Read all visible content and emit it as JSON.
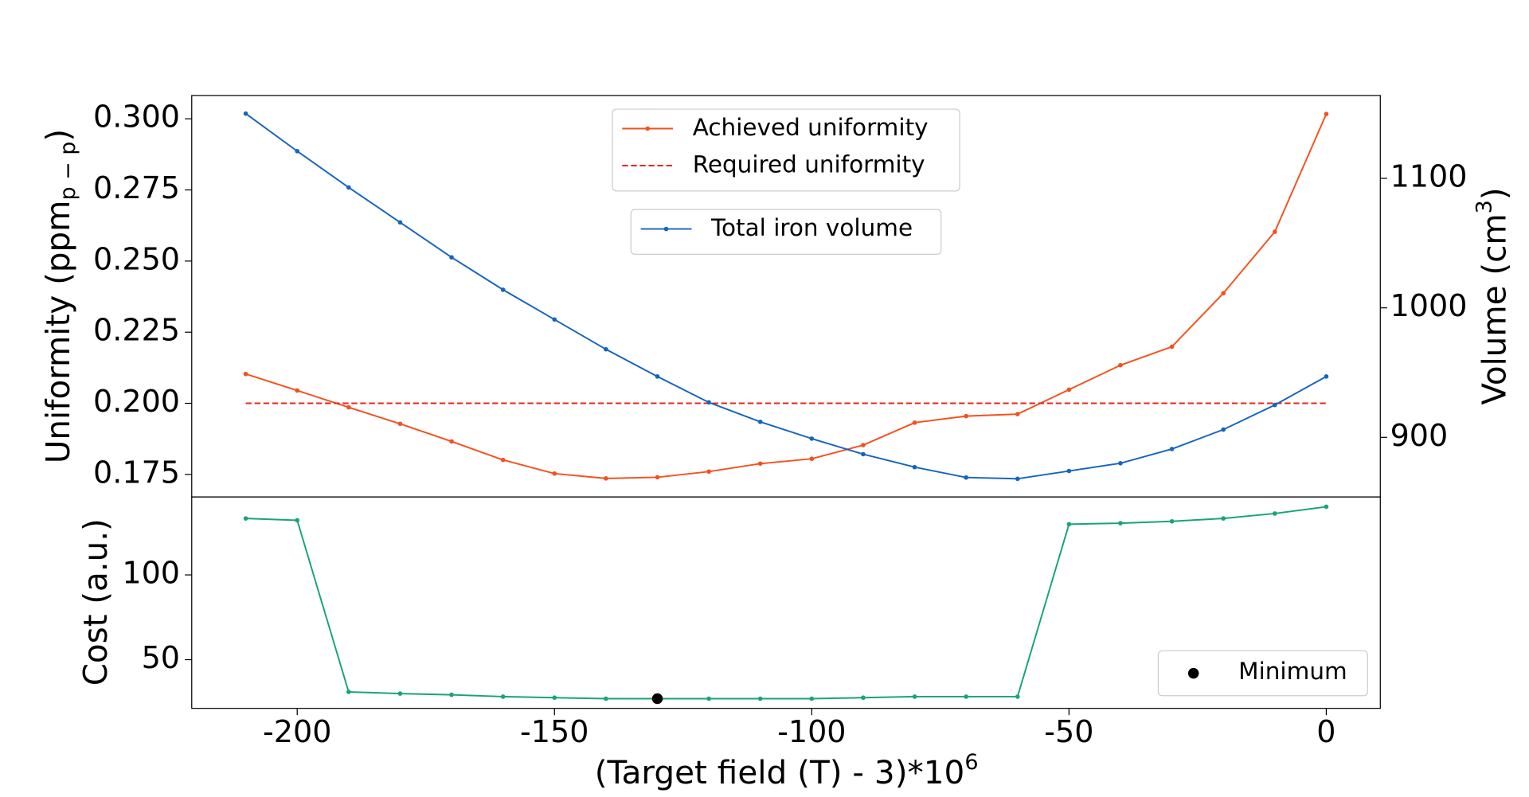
{
  "chart_data": [
    {
      "type": "line",
      "ylabel": "Uniformity (ppm",
      "ylabel_sub": "p − p",
      "ylabel_end": ")",
      "y2label": "Volume  (cm",
      "y2label_sup": "3",
      "y2label_end": ")",
      "xlim": [
        -220.5,
        10.5
      ],
      "ylim": [
        0.1671,
        0.3082
      ],
      "yticks": [
        {
          "value": 0.175,
          "label": "0.175"
        },
        {
          "value": 0.2,
          "label": "0.200"
        },
        {
          "value": 0.225,
          "label": "0.225"
        },
        {
          "value": 0.25,
          "label": "0.250"
        },
        {
          "value": 0.275,
          "label": "0.275"
        },
        {
          "value": 0.3,
          "label": "0.300"
        }
      ],
      "y2lim": [
        854,
        1164
      ],
      "y2ticks": [
        900,
        1000,
        1100
      ],
      "legend": "upper center",
      "series": [
        {
          "name": "Achieved uniformity",
          "color": "#f4511e",
          "marker": true,
          "axis": "y",
          "x": [
            -210,
            -200,
            -190,
            -180,
            -170,
            -160,
            -150,
            -140,
            -130,
            -120,
            -110,
            -100,
            -90,
            -80,
            -70,
            -60,
            -50,
            -40,
            -30,
            -20,
            -10,
            0
          ],
          "values": [
            0.2103,
            0.2045,
            0.1986,
            0.1928,
            0.1866,
            0.1801,
            0.1753,
            0.1736,
            0.174,
            0.176,
            0.1788,
            0.1805,
            0.1853,
            0.1932,
            0.1955,
            0.1962,
            0.2048,
            0.2134,
            0.2199,
            0.2387,
            0.2603,
            0.3017
          ]
        },
        {
          "name": "Required uniformity",
          "color": "#e8251b",
          "marker": false,
          "linestyle": "dashed",
          "axis": "y",
          "x": [
            -210,
            0
          ],
          "values": [
            0.2,
            0.2
          ]
        },
        {
          "name": "Total iron volume",
          "color": "#1565c0",
          "marker": true,
          "axis": "y2",
          "x": [
            -210,
            -200,
            -190,
            -180,
            -170,
            -160,
            -150,
            -140,
            -130,
            -120,
            -110,
            -100,
            -90,
            -80,
            -70,
            -60,
            -50,
            -40,
            -30,
            -20,
            -10,
            0
          ],
          "values": [
            1150,
            1121,
            1093,
            1066,
            1039,
            1014,
            991,
            968,
            947,
            927,
            912,
            899,
            887,
            877,
            869,
            868,
            874,
            880,
            891,
            906,
            925,
            947
          ]
        }
      ]
    },
    {
      "type": "line",
      "ylabel": "Cost (a.u.)",
      "xlabel": "(Target field (T) - 3)*10",
      "xlabel_sup": "6",
      "xlim": [
        -220.5,
        10.5
      ],
      "xticks": [
        -200,
        -150,
        -100,
        -50,
        0
      ],
      "ylim": [
        21.3,
        146
      ],
      "yticks": [
        50,
        100
      ],
      "legend": "lower right",
      "series": [
        {
          "color": "#17a673",
          "marker": true,
          "x": [
            -210,
            -200,
            -190,
            -180,
            -170,
            -160,
            -150,
            -140,
            -130,
            -120,
            -110,
            -100,
            -90,
            -80,
            -70,
            -60,
            -50,
            -40,
            -30,
            -20,
            -10,
            0
          ],
          "values": [
            133.3,
            132.2,
            31,
            30,
            29.3,
            28.2,
            27.6,
            27,
            27,
            27,
            27,
            27,
            27.6,
            28.2,
            28.2,
            28.2,
            129.9,
            130.5,
            131.6,
            133.3,
            136.2,
            140.2
          ]
        }
      ],
      "points": {
        "name": "Minimum",
        "color": "#000000",
        "x": [
          -130
        ],
        "values": [
          27
        ]
      }
    }
  ]
}
